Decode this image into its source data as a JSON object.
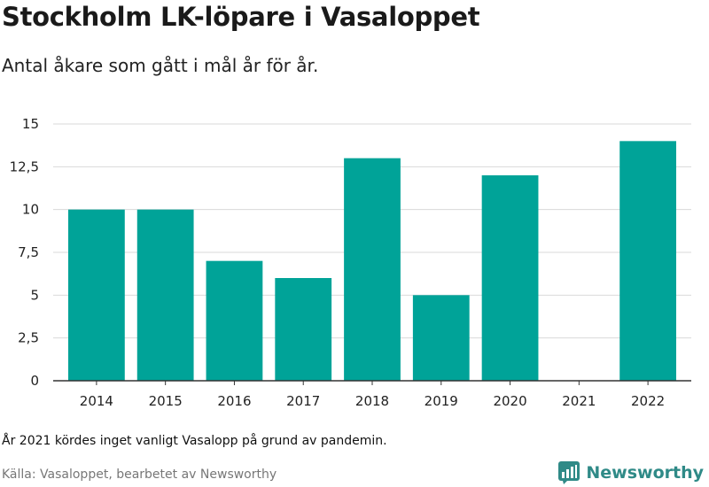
{
  "title": "Stockholm LK-löpare i Vasaloppet",
  "subtitle": "Antal åkare som gått i mål år för år.",
  "note": "År 2021 kördes inget vanligt Vasalopp på grund av pandemin.",
  "source": "Källa: Vasaloppet, bearbetet av Newsworthy",
  "brand": {
    "name": "Newsworthy",
    "icon": "newsworthy-logo-icon",
    "color": "#2f8a87"
  },
  "colors": {
    "bar": "#00a398",
    "grid": "#d9d9d9",
    "axis": "#333333"
  },
  "chart_data": {
    "type": "bar",
    "title": "Stockholm LK-löpare i Vasaloppet",
    "subtitle": "Antal åkare som gått i mål år för år.",
    "xlabel": "",
    "ylabel": "",
    "categories": [
      "2014",
      "2015",
      "2016",
      "2017",
      "2018",
      "2019",
      "2020",
      "2021",
      "2022"
    ],
    "values": [
      10,
      10,
      7,
      6,
      13,
      5,
      12,
      0,
      14
    ],
    "ylim": [
      0,
      15
    ],
    "yticks": [
      0,
      2.5,
      5,
      7.5,
      10,
      12.5,
      15
    ],
    "ytick_labels": [
      "0",
      "2,5",
      "5",
      "7,5",
      "10",
      "12,5",
      "15"
    ],
    "grid": true,
    "legend": "none"
  }
}
